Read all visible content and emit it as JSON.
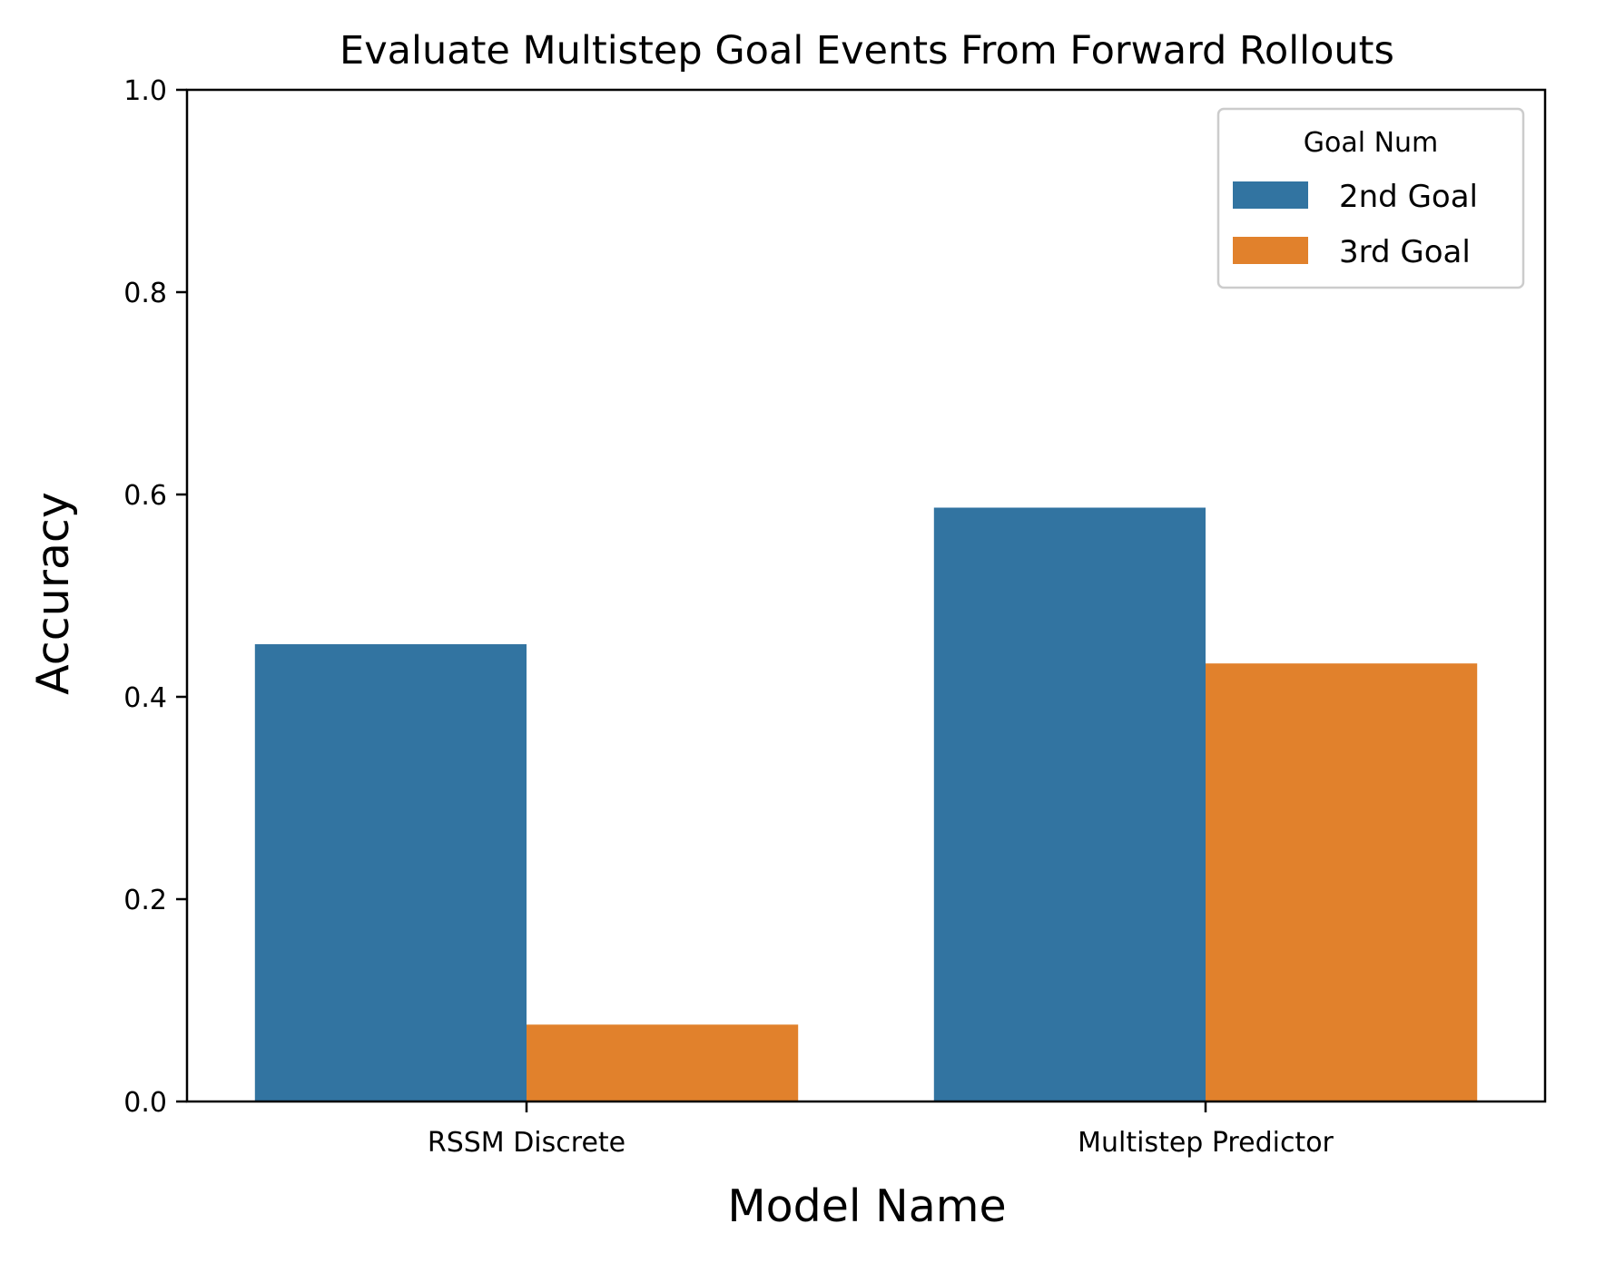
{
  "chart_data": {
    "type": "bar",
    "title": "Evaluate Multistep Goal Events From Forward Rollouts",
    "xlabel": "Model Name",
    "ylabel": "Accuracy",
    "categories": [
      "RSSM Discrete",
      "Multistep Predictor"
    ],
    "series": [
      {
        "name": "2nd Goal",
        "color": "#3274a1",
        "values": [
          0.452,
          0.587
        ]
      },
      {
        "name": "3rd Goal",
        "color": "#e1812c",
        "values": [
          0.076,
          0.433
        ]
      }
    ],
    "ylim": [
      0,
      1.0
    ],
    "yticks": [
      "0.0",
      "0.2",
      "0.4",
      "0.6",
      "0.8",
      "1.0"
    ],
    "grid": false,
    "legend": {
      "title": "Goal Num",
      "placement": "top-right"
    }
  }
}
